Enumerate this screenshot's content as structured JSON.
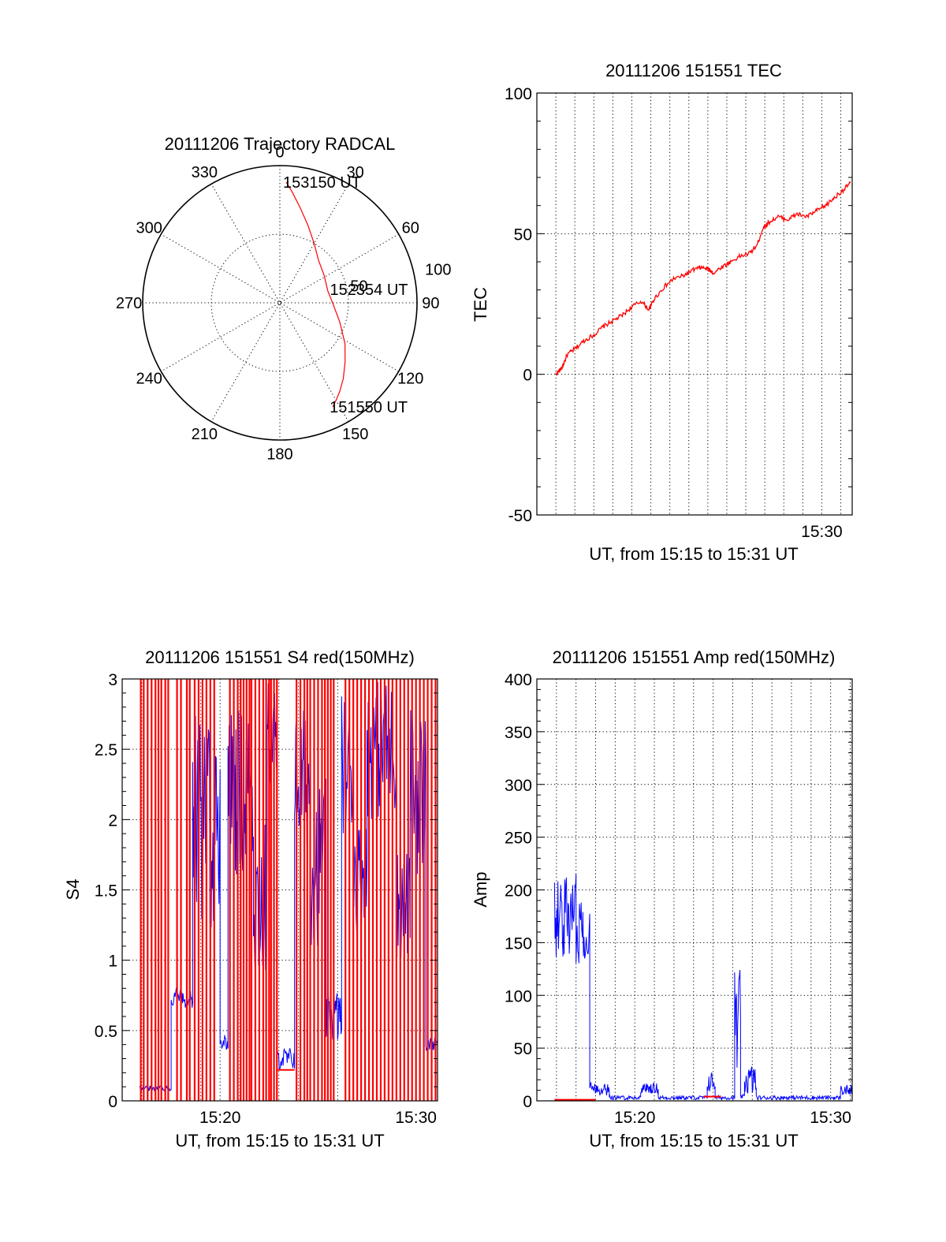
{
  "colors": {
    "red": "#ff0000",
    "blue": "#0000ff",
    "axis": "#000000"
  },
  "chart_data": [
    {
      "id": "trajectory",
      "type": "polar",
      "title": "20111206 Trajectory RADCAL",
      "angle_labels": [
        "0",
        "30",
        "60",
        "90",
        "120",
        "150",
        "180",
        "210",
        "240",
        "270",
        "300",
        "330"
      ],
      "radius_labels": [
        "50",
        "100"
      ],
      "radius_max": 100,
      "grid": true,
      "series": [
        {
          "color": "red",
          "points": [
            [
              3,
              88
            ],
            [
              6,
              82
            ],
            [
              12,
              71
            ],
            [
              20,
              60
            ],
            [
              30,
              50
            ],
            [
              42,
              42
            ],
            [
              58,
              38
            ],
            [
              76,
              36
            ],
            [
              92,
              39
            ],
            [
              108,
              46
            ],
            [
              122,
              56
            ],
            [
              132,
              64
            ],
            [
              140,
              72
            ],
            [
              146,
              78
            ],
            [
              150,
              82
            ],
            [
              153,
              85
            ]
          ]
        }
      ],
      "annotations": [
        {
          "text": "153150 UT",
          "az": 3,
          "r": 88
        },
        {
          "text": "152354 UT",
          "az": 76,
          "r": 40
        },
        {
          "text": "151550 UT",
          "az": 153,
          "r": 85
        }
      ]
    },
    {
      "id": "tec",
      "type": "line",
      "title": "20111206 151551 TEC",
      "ylabel": "TEC",
      "xlabel": "UT, from 15:15 to 15:31 UT",
      "xlim": [
        15.25,
        16.07
      ],
      "ylim": [
        -50,
        100
      ],
      "yticks": [
        -50,
        0,
        50,
        100
      ],
      "xticks": [
        {
          "v": 30.0,
          "label": "15:30"
        }
      ],
      "x_grid_step_min": 1,
      "grid": true,
      "series": [
        {
          "color": "red",
          "points": [
            [
              15.98,
              0
            ],
            [
              16.3,
              2
            ],
            [
              16.6,
              7
            ],
            [
              17.0,
              9
            ],
            [
              17.5,
              12
            ],
            [
              18.0,
              14
            ],
            [
              18.5,
              17
            ],
            [
              19.0,
              19
            ],
            [
              19.5,
              21
            ],
            [
              20.0,
              24
            ],
            [
              20.5,
              26
            ],
            [
              20.9,
              23
            ],
            [
              21.2,
              27
            ],
            [
              21.7,
              31
            ],
            [
              22.2,
              34
            ],
            [
              22.7,
              35
            ],
            [
              23.2,
              37
            ],
            [
              23.6,
              38
            ],
            [
              24.0,
              37.5
            ],
            [
              24.3,
              36
            ],
            [
              24.7,
              38
            ],
            [
              25.2,
              40
            ],
            [
              25.7,
              42
            ],
            [
              26.2,
              43
            ],
            [
              26.6,
              46
            ],
            [
              26.9,
              52
            ],
            [
              27.2,
              54
            ],
            [
              27.7,
              56
            ],
            [
              28.2,
              55
            ],
            [
              28.7,
              57
            ],
            [
              29.2,
              56
            ],
            [
              29.7,
              58
            ],
            [
              30.2,
              60
            ],
            [
              30.7,
              63
            ],
            [
              31.2,
              66
            ],
            [
              31.5,
              68
            ]
          ]
        }
      ]
    },
    {
      "id": "s4",
      "type": "line",
      "title": "20111206 151551 S4 red(150MHz)",
      "ylabel": "S4",
      "xlabel": "UT, from 15:15 to 15:31 UT",
      "xlim": [
        15.0,
        31.1
      ],
      "ylim": [
        0,
        3
      ],
      "yticks": [
        0,
        0.5,
        1,
        1.5,
        2,
        2.5,
        3
      ],
      "xticks": [
        {
          "v": 20,
          "label": "15:20"
        },
        {
          "v": 30,
          "label": "15:30"
        }
      ],
      "grid": true,
      "series": [
        {
          "color": "blue",
          "segments": [
            [
              15.9,
              17.5,
              0.09,
              0.02
            ],
            [
              17.5,
              18.6,
              0.74,
              0.08
            ],
            [
              18.6,
              20.0,
              2.0,
              0.8
            ],
            [
              20.0,
              20.4,
              0.42,
              0.06
            ],
            [
              20.4,
              21.7,
              2.2,
              0.6
            ],
            [
              21.7,
              22.4,
              1.4,
              0.6
            ],
            [
              22.4,
              22.9,
              2.6,
              0.4
            ],
            [
              22.9,
              23.8,
              0.3,
              0.08
            ],
            [
              23.8,
              24.6,
              2.3,
              0.5
            ],
            [
              24.6,
              25.4,
              1.7,
              0.6
            ],
            [
              25.4,
              26.2,
              0.6,
              0.2
            ],
            [
              26.2,
              26.8,
              2.4,
              0.5
            ],
            [
              26.8,
              27.5,
              1.6,
              0.4
            ],
            [
              27.5,
              29.0,
              2.5,
              0.5
            ],
            [
              29.0,
              29.7,
              1.4,
              0.4
            ],
            [
              29.7,
              30.5,
              2.2,
              0.6
            ],
            [
              30.5,
              31.1,
              0.4,
              0.05
            ]
          ]
        },
        {
          "color": "red",
          "spikes": [
            15.95,
            16.1,
            16.3,
            16.5,
            16.7,
            16.85,
            17.0,
            17.2,
            17.35,
            17.8,
            18.0,
            18.3,
            18.45,
            18.7,
            18.9,
            19.1,
            19.3,
            19.5,
            19.7,
            20.5,
            20.7,
            20.9,
            21.05,
            21.2,
            21.35,
            21.5,
            21.6,
            21.8,
            22.0,
            22.2,
            22.35,
            22.5,
            22.6,
            22.75,
            22.9,
            23.9,
            24.1,
            24.3,
            24.45,
            24.6,
            24.8,
            25.0,
            25.2,
            25.35,
            25.5,
            25.65,
            25.8,
            26.4,
            26.6,
            26.8,
            27.0,
            27.2,
            27.4,
            27.6,
            27.8,
            28.0,
            28.2,
            28.4,
            28.6,
            28.8,
            29.0,
            29.2,
            29.4,
            29.6,
            29.8,
            30.0,
            30.2,
            30.4,
            30.6,
            30.8,
            31.0
          ],
          "base": [
            [
              22.9,
              23.8,
              0.22
            ]
          ]
        }
      ]
    },
    {
      "id": "amp",
      "type": "line",
      "title": "20111206 151551 Amp red(150MHz)",
      "ylabel": "Amp",
      "xlabel": "UT, from 15:15 to 15:31 UT",
      "xlim": [
        15.0,
        31.1
      ],
      "ylim": [
        0,
        400
      ],
      "yticks": [
        0,
        50,
        100,
        150,
        200,
        250,
        300,
        350,
        400
      ],
      "xticks": [
        {
          "v": 20,
          "label": "15:20"
        },
        {
          "v": 30,
          "label": "15:30"
        }
      ],
      "grid": true,
      "series": [
        {
          "color": "blue",
          "segments": [
            [
              15.9,
              17.0,
              175,
              40
            ],
            [
              17.0,
              17.7,
              165,
              35
            ],
            [
              17.7,
              18.7,
              12,
              7
            ],
            [
              18.7,
              20.3,
              3,
              2
            ],
            [
              20.3,
              21.2,
              12,
              5
            ],
            [
              21.2,
              23.7,
              3,
              2
            ],
            [
              23.7,
              24.1,
              18,
              10
            ],
            [
              24.1,
              25.1,
              3,
              2
            ],
            [
              25.1,
              25.4,
              70,
              60
            ],
            [
              25.4,
              25.6,
              4,
              2
            ],
            [
              25.6,
              26.2,
              20,
              15
            ],
            [
              26.2,
              30.5,
              3,
              2
            ],
            [
              30.5,
              31.1,
              10,
              5
            ]
          ]
        },
        {
          "color": "red",
          "base": [
            [
              15.9,
              18.0,
              1
            ],
            [
              23.5,
              24.4,
              4
            ]
          ]
        }
      ]
    }
  ]
}
